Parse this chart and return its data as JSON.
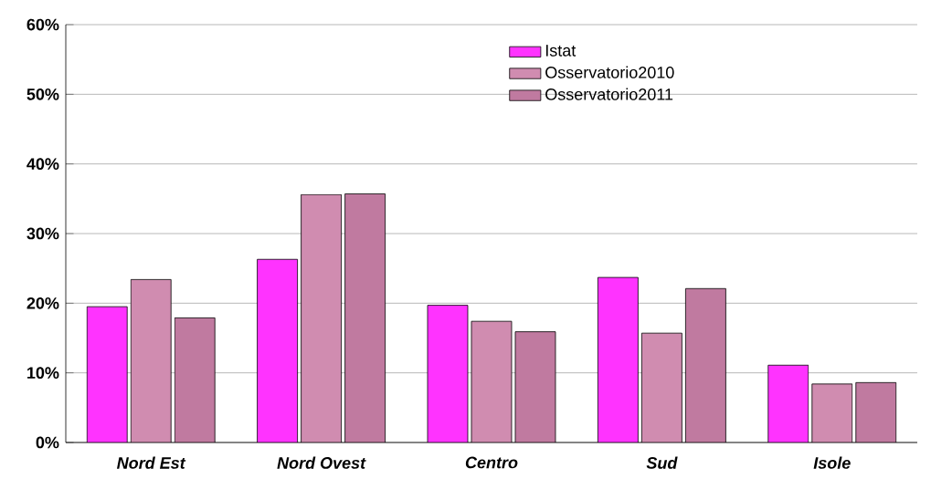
{
  "chart_data": {
    "type": "bar",
    "categories": [
      "Nord Est",
      "Nord Ovest",
      "Centro",
      "Sud",
      "Isole"
    ],
    "series": [
      {
        "name": "Istat",
        "color": "#ff33ff",
        "values": [
          19.5,
          26.3,
          19.7,
          23.7,
          11.1
        ]
      },
      {
        "name": "Osservatorio2010",
        "color": "#d08cb0",
        "values": [
          23.4,
          35.6,
          17.4,
          15.7,
          8.4
        ]
      },
      {
        "name": "Osservatorio2011",
        "color": "#c07aa0",
        "values": [
          17.9,
          35.7,
          15.9,
          22.1,
          8.6
        ]
      }
    ],
    "ylim": [
      0,
      60
    ],
    "yticks": [
      {
        "value": 0,
        "label": "0%"
      },
      {
        "value": 10,
        "label": "10%"
      },
      {
        "value": 20,
        "label": "20%"
      },
      {
        "value": 30,
        "label": "30%"
      },
      {
        "value": 40,
        "label": "40%"
      },
      {
        "value": 50,
        "label": "50%"
      },
      {
        "value": 60,
        "label": "60%"
      }
    ],
    "grid": "y",
    "legend": "top"
  }
}
